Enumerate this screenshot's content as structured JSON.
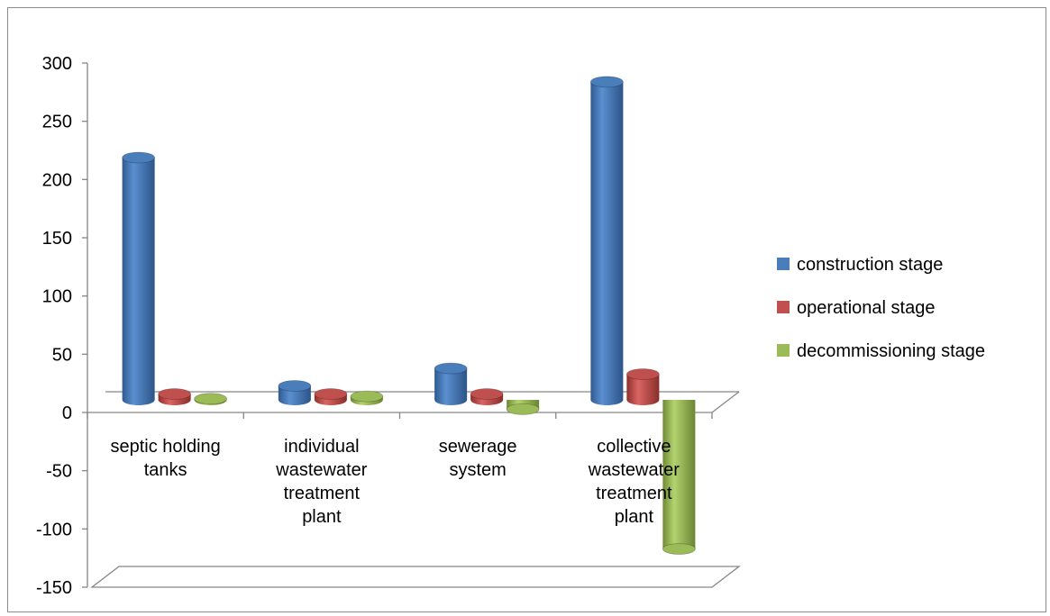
{
  "chart_data": {
    "type": "bar",
    "style": "3d-cylinder",
    "title": "",
    "xlabel": "",
    "ylabel": "",
    "ylim": [
      -150,
      300
    ],
    "yticks": [
      300,
      250,
      200,
      150,
      100,
      50,
      0,
      -50,
      -100,
      -150
    ],
    "grid": false,
    "legend_position": "right",
    "categories": [
      [
        "septic holding",
        "tanks"
      ],
      [
        "individual",
        "wastewater",
        "treatment",
        "plant"
      ],
      [
        "sewerage",
        "system"
      ],
      [
        "collective",
        "wastewater",
        "treatment",
        "plant"
      ]
    ],
    "series": [
      {
        "name": "construction stage",
        "color": "#4a7ebb",
        "values": [
          208,
          12,
          27,
          273
        ]
      },
      {
        "name": "operational stage",
        "color": "#c0504d",
        "values": [
          5,
          5,
          5,
          22
        ]
      },
      {
        "name": "decommissioning stage",
        "color": "#9bbb59",
        "values": [
          1,
          3,
          -8,
          -128
        ]
      }
    ]
  }
}
